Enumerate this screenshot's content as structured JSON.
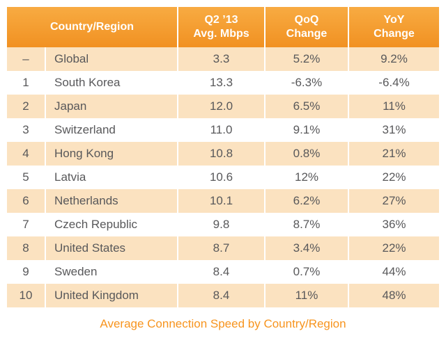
{
  "chart_data": {
    "type": "table",
    "title": "Average Connection Speed by Country/Region",
    "columns": [
      "Country/Region",
      "Q2 ’13 Avg. Mbps",
      "QoQ Change",
      "YoY Change"
    ],
    "rows": [
      {
        "rank": "–",
        "country": "Global",
        "avg_mbps": "3.3",
        "qoq_change": "5.2%",
        "yoy_change": "9.2%"
      },
      {
        "rank": "1",
        "country": "South Korea",
        "avg_mbps": "13.3",
        "qoq_change": "-6.3%",
        "yoy_change": "-6.4%"
      },
      {
        "rank": "2",
        "country": "Japan",
        "avg_mbps": "12.0",
        "qoq_change": "6.5%",
        "yoy_change": "11%"
      },
      {
        "rank": "3",
        "country": "Switzerland",
        "avg_mbps": "11.0",
        "qoq_change": "9.1%",
        "yoy_change": "31%"
      },
      {
        "rank": "4",
        "country": "Hong Kong",
        "avg_mbps": "10.8",
        "qoq_change": "0.8%",
        "yoy_change": "21%"
      },
      {
        "rank": "5",
        "country": "Latvia",
        "avg_mbps": "10.6",
        "qoq_change": "12%",
        "yoy_change": "22%"
      },
      {
        "rank": "6",
        "country": "Netherlands",
        "avg_mbps": "10.1",
        "qoq_change": "6.2%",
        "yoy_change": "27%"
      },
      {
        "rank": "7",
        "country": "Czech Republic",
        "avg_mbps": "9.8",
        "qoq_change": "8.7%",
        "yoy_change": "36%"
      },
      {
        "rank": "8",
        "country": "United States",
        "avg_mbps": "8.7",
        "qoq_change": "3.4%",
        "yoy_change": "22%"
      },
      {
        "rank": "9",
        "country": "Sweden",
        "avg_mbps": "8.4",
        "qoq_change": "0.7%",
        "yoy_change": "44%"
      },
      {
        "rank": "10",
        "country": "United Kingdom",
        "avg_mbps": "8.4",
        "qoq_change": "11%",
        "yoy_change": "48%"
      }
    ]
  },
  "header": {
    "country": "Country/Region",
    "mbps_line1": "Q2 ’13",
    "mbps_line2": "Avg. Mbps",
    "qoq_line1": "QoQ",
    "qoq_line2": "Change",
    "yoy_line1": "YoY",
    "yoy_line2": "Change"
  },
  "caption": "Average Connection Speed by Country/Region",
  "colors": {
    "header_bg_top": "#F8AB42",
    "header_bg_bottom": "#F19122",
    "header_text": "#FFFFFF",
    "row_stripe_bg": "#FBE2C0",
    "row_alt_bg": "#FFFFFF",
    "body_text": "#58585A",
    "column_divider": "#FFFFFF",
    "caption_text": "#F7941E"
  }
}
